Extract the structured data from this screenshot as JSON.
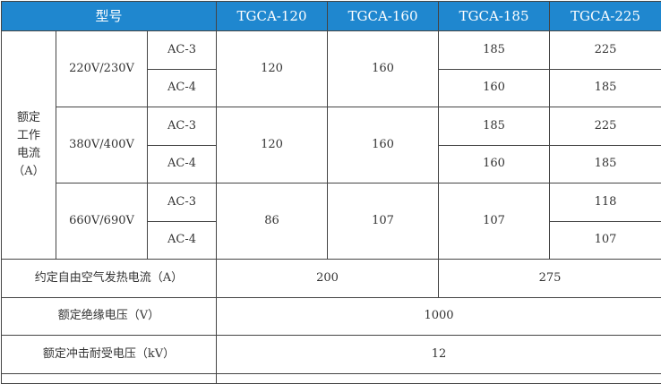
{
  "header": {
    "model_label": "型号",
    "models": [
      "TGCA-120",
      "TGCA-160",
      "TGCA-185",
      "TGCA-225"
    ]
  },
  "rated_current": {
    "label_lines": [
      "额定",
      "工作",
      "电流",
      "（A）"
    ],
    "groups": [
      {
        "voltage": "220V/230V",
        "ac3": "AC-3",
        "ac4": "AC-4",
        "tgca120": "120",
        "tgca160": "160",
        "tgca185": [
          "185",
          "160"
        ],
        "tgca225": [
          "225",
          "185"
        ]
      },
      {
        "voltage": "380V/400V",
        "ac3": "AC-3",
        "ac4": "AC-4",
        "tgca120": "120",
        "tgca160": "160",
        "tgca185": [
          "185",
          "160"
        ],
        "tgca225": [
          "225",
          "185"
        ]
      },
      {
        "voltage": "660V/690V",
        "ac3": "AC-3",
        "ac4": "AC-4",
        "tgca120": "86",
        "tgca160": "107",
        "tgca185": "107",
        "tgca225": [
          "118",
          "107"
        ]
      }
    ]
  },
  "thermal_current": {
    "label": "约定自由空气发热电流（A）",
    "values": [
      "200",
      "275"
    ]
  },
  "insulation_voltage": {
    "label": "额定绝缘电压（V）",
    "value": "1000"
  },
  "impulse_voltage": {
    "label": "额定冲击耐受电压（kV）",
    "value": "12"
  },
  "colors": {
    "header_bg": "#1f87cf"
  }
}
